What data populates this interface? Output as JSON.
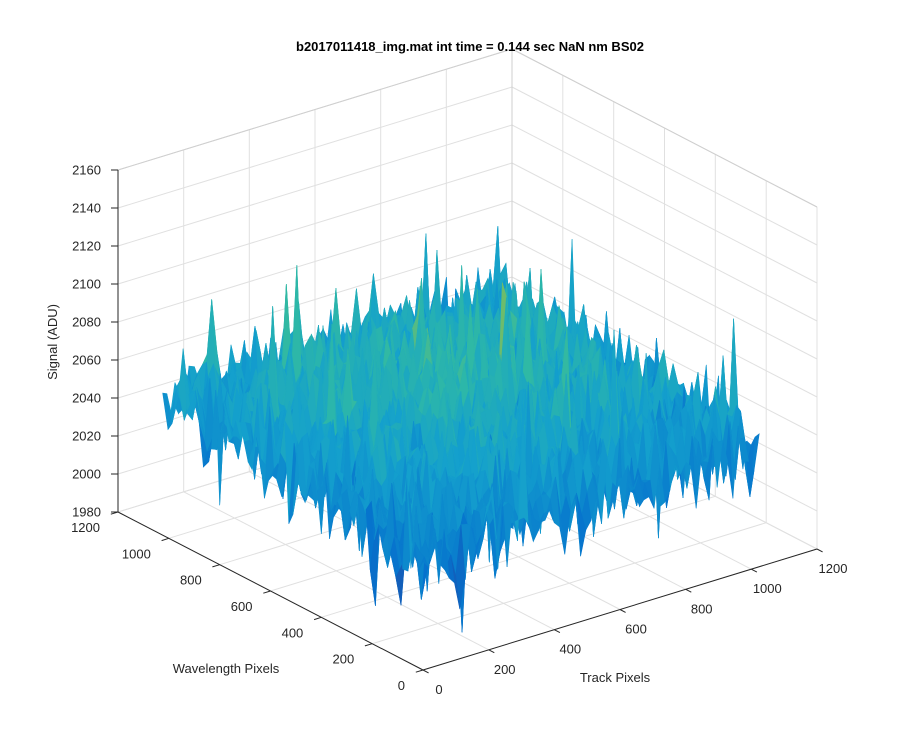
{
  "chart_data": {
    "type": "surface",
    "title": "b2017011418_img.mat int time = 0.144 sec  NaN nm BS02",
    "xlabel": "Track Pixels",
    "ylabel": "Wavelength Pixels",
    "zlabel": "Signal (ADU)",
    "xlim": [
      0,
      1200
    ],
    "ylim": [
      0,
      1200
    ],
    "zlim": [
      1980,
      2160
    ],
    "x_ticks": [
      0,
      200,
      400,
      600,
      800,
      1000,
      1200
    ],
    "y_ticks": [
      0,
      200,
      400,
      600,
      800,
      1000,
      1200
    ],
    "z_ticks": [
      1980,
      2000,
      2020,
      2040,
      2060,
      2080,
      2100,
      2120,
      2140,
      2160
    ],
    "data_extent": {
      "x": [
        0,
        1024
      ],
      "y": [
        0,
        1024
      ]
    },
    "signal_range": [
      1990,
      2145
    ],
    "signal_mean": 2055,
    "grid": true,
    "box": true,
    "colormap": "parula",
    "colors": {
      "low": "#0072bd",
      "mid": "#2db9a8",
      "high": "#e8c43a"
    }
  }
}
